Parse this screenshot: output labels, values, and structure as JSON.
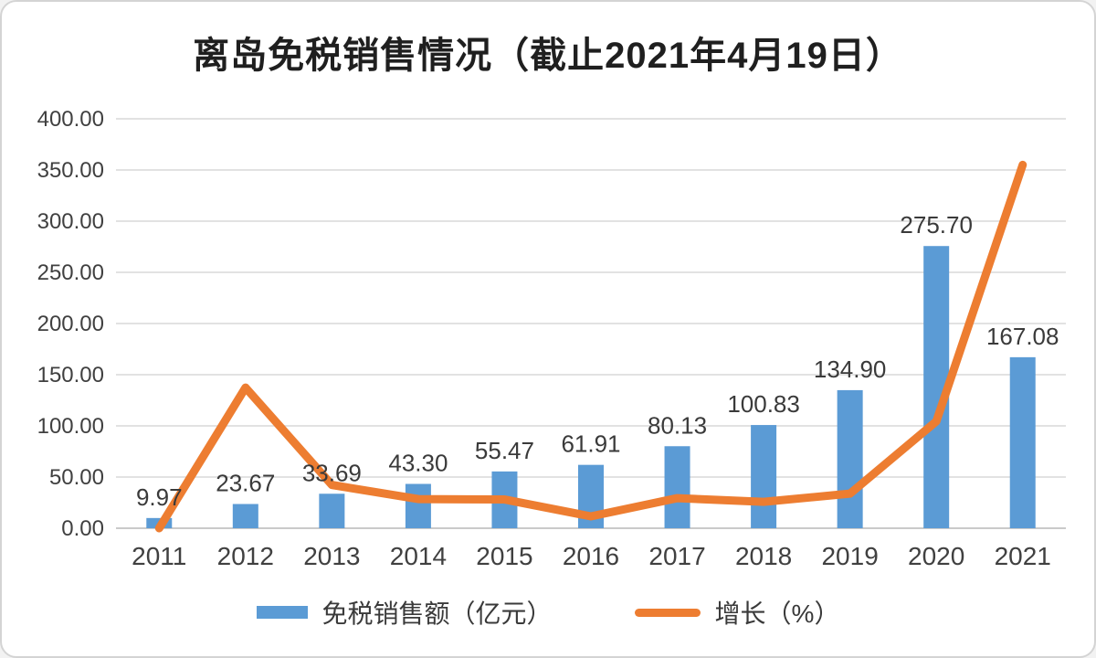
{
  "title": "离岛免税销售情况（截止2021年4月19日）",
  "chart_data": {
    "type": "bar",
    "subtype": "bar+line combo",
    "categories": [
      "2011",
      "2012",
      "2013",
      "2014",
      "2015",
      "2016",
      "2017",
      "2018",
      "2019",
      "2020",
      "2021"
    ],
    "series": [
      {
        "name": "免税销售额（亿元）",
        "type": "bar",
        "color": "#5B9BD5",
        "values": [
          9.97,
          23.67,
          33.69,
          43.3,
          55.47,
          61.91,
          80.13,
          100.83,
          134.9,
          275.7,
          167.08
        ],
        "data_labels": [
          "9.97",
          "23.67",
          "33.69",
          "43.30",
          "55.47",
          "61.91",
          "80.13",
          "100.83",
          "134.90",
          "275.70",
          "167.08"
        ]
      },
      {
        "name": "增长（%）",
        "type": "line",
        "color": "#ED7D31",
        "values": [
          0,
          137.4,
          42.3,
          28.5,
          28.1,
          11.6,
          29.4,
          25.8,
          33.8,
          104.4,
          355.0
        ]
      }
    ],
    "title": "离岛免税销售情况（截止2021年4月19日）",
    "xlabel": "",
    "ylabel": "",
    "ylim": [
      0,
      400
    ],
    "ytick_step": 50,
    "ytick_labels": [
      "0.00",
      "50.00",
      "100.00",
      "150.00",
      "200.00",
      "250.00",
      "300.00",
      "350.00",
      "400.00"
    ],
    "grid": true,
    "legend_position": "bottom"
  },
  "colors": {
    "bar": "#5B9BD5",
    "line": "#ED7D31",
    "grid": "#D9D9D9",
    "axis": "#BFBFBF",
    "text": "#404040",
    "label": "#3a3a3a",
    "title": "#1f1f1f"
  }
}
